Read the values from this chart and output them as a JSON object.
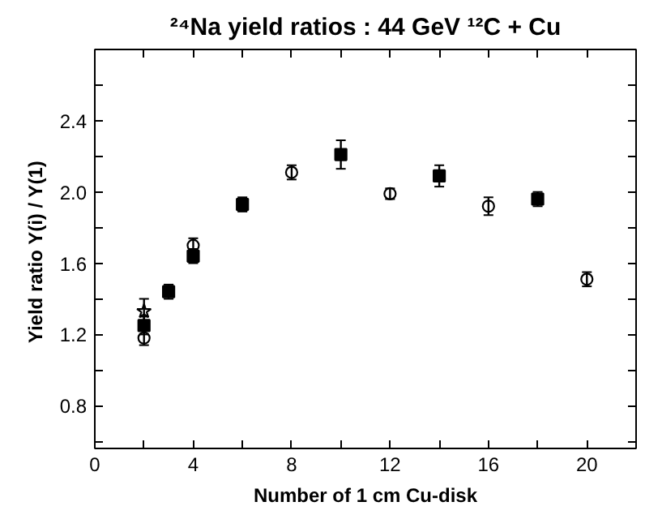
{
  "chart_data": {
    "type": "scatter",
    "title": "²⁴Na yield ratios : 44 GeV ¹²C + Cu",
    "xlabel": "Number of 1 cm Cu-disk",
    "ylabel": "Yield ratio  Y(i) / Y(1)",
    "xlim": [
      0,
      22
    ],
    "ylim": [
      0.56,
      2.8
    ],
    "xticks": [
      0,
      {
        "value": 2,
        "label": null
      },
      4,
      {
        "value": 6,
        "label": null
      },
      8,
      {
        "value": 10,
        "label": null
      },
      12,
      {
        "value": 14,
        "label": null
      },
      16,
      {
        "value": 18,
        "label": null
      },
      20
    ],
    "yticks": [
      {
        "value": 0.6,
        "label": null
      },
      0.8,
      {
        "value": 1.0,
        "label": null
      },
      1.2,
      {
        "value": 1.4,
        "label": null
      },
      1.6,
      {
        "value": 1.8,
        "label": null
      },
      "2.0",
      {
        "value": 2.2,
        "label": null
      },
      2.4,
      {
        "value": 2.6,
        "label": null
      }
    ],
    "grid": false,
    "series": [
      {
        "color": "#000000",
        "marker": "circle_open",
        "x": [
          2,
          4,
          8,
          12,
          16,
          20
        ],
        "values": [
          1.18,
          1.7,
          2.11,
          1.99,
          1.92,
          1.51
        ],
        "errors": [
          0.04,
          0.04,
          0.04,
          0.03,
          0.05,
          0.04
        ]
      },
      {
        "color": "#000000",
        "marker": "square",
        "x": [
          2,
          3,
          4,
          6,
          10,
          14,
          18
        ],
        "values": [
          1.25,
          1.44,
          1.64,
          1.93,
          2.21,
          2.09,
          1.96
        ],
        "errors": [
          0.05,
          0.04,
          0.04,
          0.04,
          0.08,
          0.06,
          0.04
        ]
      },
      {
        "color": "#000000",
        "marker": "star_open",
        "x": [
          2
        ],
        "values": [
          1.33
        ],
        "errors": [
          0.07
        ]
      }
    ]
  }
}
